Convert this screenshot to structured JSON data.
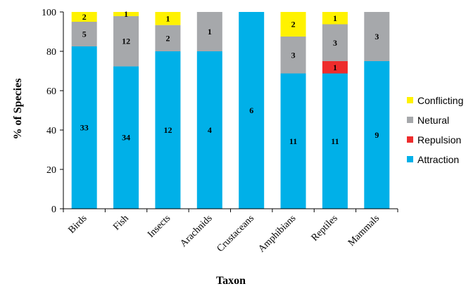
{
  "chart_data": {
    "type": "bar",
    "stacked": true,
    "categories": [
      "Birds",
      "Fish",
      "Insects",
      "Arachnids",
      "Crustaceans",
      "Amphibians",
      "Reptiles",
      "Mammals"
    ],
    "xlabel": "Taxon",
    "ylabel": "% of Species",
    "ylim": [
      0,
      100
    ],
    "yticks": [
      0,
      20,
      40,
      60,
      80,
      100
    ],
    "grid": false,
    "legend_position": "right",
    "series": [
      {
        "name": "Attraction",
        "color": "#00b0e8",
        "counts": [
          33,
          34,
          12,
          4,
          6,
          11,
          11,
          9
        ],
        "labels": [
          "33",
          "34",
          "12",
          "4",
          "6",
          "11",
          "11",
          "9"
        ]
      },
      {
        "name": "Repulsion",
        "color": "#ee2c2c",
        "counts": [
          0,
          0,
          0,
          0,
          0,
          0,
          1,
          0
        ],
        "labels": [
          "",
          "",
          "",
          "",
          "",
          "",
          "1",
          ""
        ]
      },
      {
        "name": "Netural",
        "color": "#a6a8ab",
        "counts": [
          5,
          12,
          2,
          1,
          0,
          3,
          3,
          3
        ],
        "labels": [
          "5",
          "12",
          "2",
          "1",
          "",
          "3",
          "3",
          "3"
        ]
      },
      {
        "name": "Conflicting",
        "color": "#fff200",
        "counts": [
          2,
          1,
          1,
          0,
          0,
          2,
          1,
          0
        ],
        "labels": [
          "2",
          "1",
          "1",
          "",
          "",
          "2",
          "1",
          ""
        ]
      }
    ],
    "legend_order": [
      "Conflicting",
      "Netural",
      "Repulsion",
      "Attraction"
    ]
  }
}
